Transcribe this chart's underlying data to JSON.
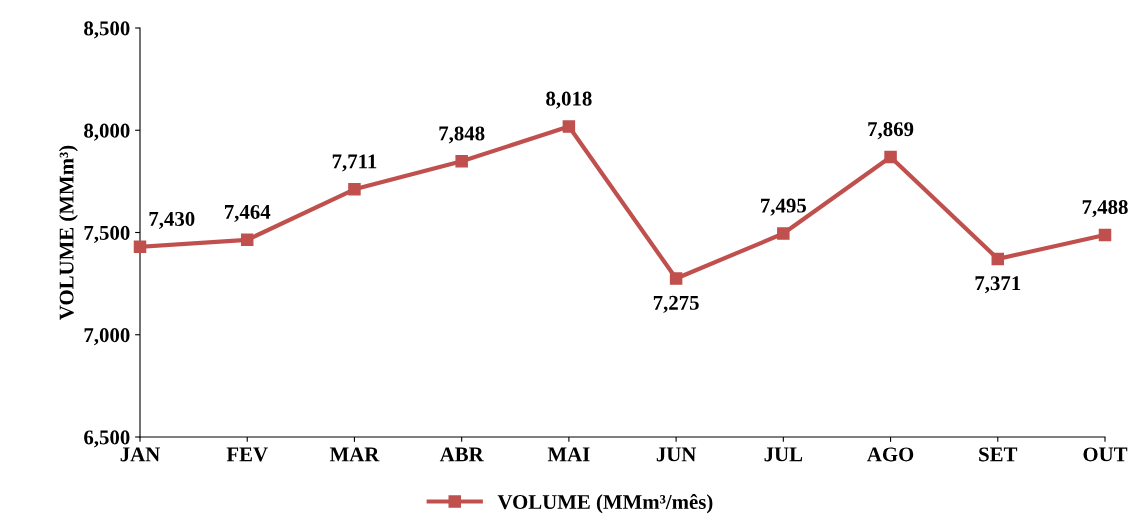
{
  "chart_data": {
    "type": "line",
    "ylabel": "VOLUME (MMm³)",
    "categories": [
      "JAN",
      "FEV",
      "MAR",
      "ABR",
      "MAI",
      "JUN",
      "JUL",
      "AGO",
      "SET",
      "OUT"
    ],
    "series": [
      {
        "name": "VOLUME (MMm³/mês)",
        "color": "#c0504d",
        "values": [
          7430,
          7464,
          7711,
          7848,
          8018,
          7275,
          7495,
          7869,
          7371,
          7488
        ],
        "value_labels": [
          "7,430",
          "7,464",
          "7,711",
          "7,848",
          "8,018",
          "7,275",
          "7,495",
          "7,869",
          "7,371",
          "7,488"
        ]
      }
    ],
    "ylim": [
      6500,
      8500
    ],
    "yticks": [
      {
        "value": 6500,
        "label": "6,500"
      },
      {
        "value": 7000,
        "label": "7,000"
      },
      {
        "value": 7500,
        "label": "7,500"
      },
      {
        "value": 8000,
        "label": "8,000"
      },
      {
        "value": 8500,
        "label": "8,500"
      }
    ],
    "grid": false,
    "legend": "bottom",
    "marker": "square",
    "line_style": "solid"
  }
}
